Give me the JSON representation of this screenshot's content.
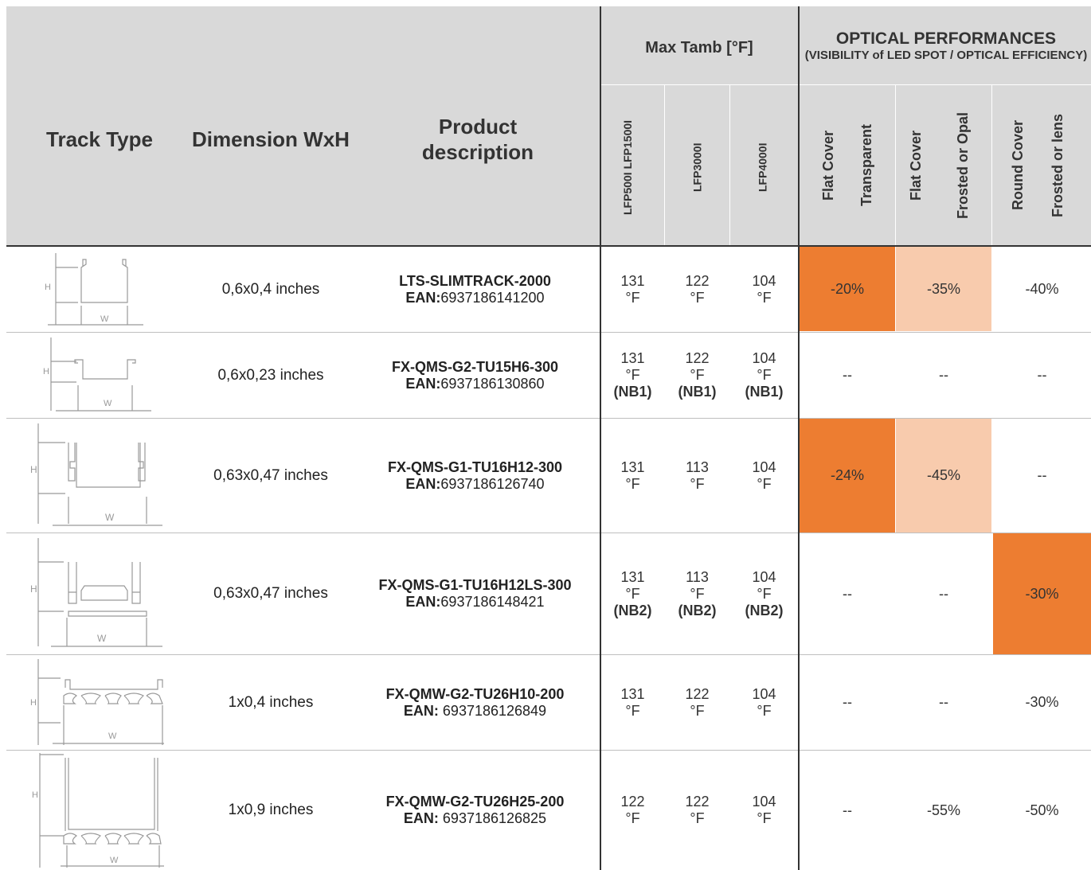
{
  "header": {
    "track_type": "Track Type",
    "dimension": "Dimension WxH",
    "product_description": "Product description",
    "max_tamb": "Max Tamb [°F]",
    "optical_title": "OPTICAL PERFORMANCES",
    "optical_subtitle": "(VISIBILITY of LED SPOT / OPTICAL EFFICIENCY)",
    "col_lfp500": "LFP500I LFP1500I",
    "col_lfp3000": "LFP3000I",
    "col_lfp4000": "LFP4000I",
    "flat_cover_a": "Flat Cover",
    "transparent": "Transparent",
    "flat_cover_b": "Flat Cover",
    "frosted_opal": "Frosted or Opal",
    "round_cover": "Round Cover",
    "frosted_lens": "Frosted or lens"
  },
  "diagram_labels": {
    "w": "W",
    "h": "H"
  },
  "colors": {
    "header_bg": "#d9d9d9",
    "strong_orange": "#ed7d31",
    "light_peach": "#f8cbad"
  },
  "rows": [
    {
      "dimension": "0,6x0,4 inches",
      "code": "LTS-SLIMTRACK-2000",
      "ean_label": "EAN:",
      "ean": "6937186141200",
      "t1": "131 °F",
      "t1_note": "",
      "t2": "122 °F",
      "t2_note": "",
      "t3": "104 °F",
      "t3_note": "",
      "transparent": "-20%",
      "frosted_opal": "-35%",
      "round": "-40%"
    },
    {
      "dimension": "0,6x0,23 inches",
      "code": "FX-QMS-G2-TU15H6-300",
      "ean_label": "EAN:",
      "ean": "6937186130860",
      "t1": "131 °F",
      "t1_note": "(NB1)",
      "t2": "122 °F",
      "t2_note": "(NB1)",
      "t3": "104 °F",
      "t3_note": "(NB1)",
      "transparent": "--",
      "frosted_opal": "--",
      "round": "--"
    },
    {
      "dimension": "0,63x0,47 inches",
      "code": "FX-QMS-G1-TU16H12-300",
      "ean_label": "EAN:",
      "ean": "6937186126740",
      "t1": "131 °F",
      "t1_note": "",
      "t2": "113 °F",
      "t2_note": "",
      "t3": "104 °F",
      "t3_note": "",
      "transparent": "-24%",
      "frosted_opal": "-45%",
      "round": "--"
    },
    {
      "dimension": "0,63x0,47 inches",
      "code": "FX-QMS-G1-TU16H12LS-300",
      "ean_label": "EAN:",
      "ean": "6937186148421",
      "t1": "131 °F",
      "t1_note": "(NB2)",
      "t2": "113 °F",
      "t2_note": "(NB2)",
      "t3": "104 °F",
      "t3_note": "(NB2)",
      "transparent": "--",
      "frosted_opal": "--",
      "round": "-30%"
    },
    {
      "dimension": "1x0,4 inches",
      "code": "FX-QMW-G2-TU26H10-200",
      "ean_label": "EAN:",
      "ean": " 6937186126849",
      "t1": "131 °F",
      "t1_note": "",
      "t2": "122 °F",
      "t2_note": "",
      "t3": "104 °F",
      "t3_note": "",
      "transparent": "--",
      "frosted_opal": "--",
      "round": "-30%"
    },
    {
      "dimension": "1x0,9 inches",
      "code": "FX-QMW-G2-TU26H25-200",
      "ean_label": "EAN:",
      "ean": " 6937186126825",
      "t1": "122 °F",
      "t1_note": "",
      "t2": "122 °F",
      "t2_note": "",
      "t3": "104 °F",
      "t3_note": "",
      "transparent": "--",
      "frosted_opal": "-55%",
      "round": "-50%"
    }
  ]
}
